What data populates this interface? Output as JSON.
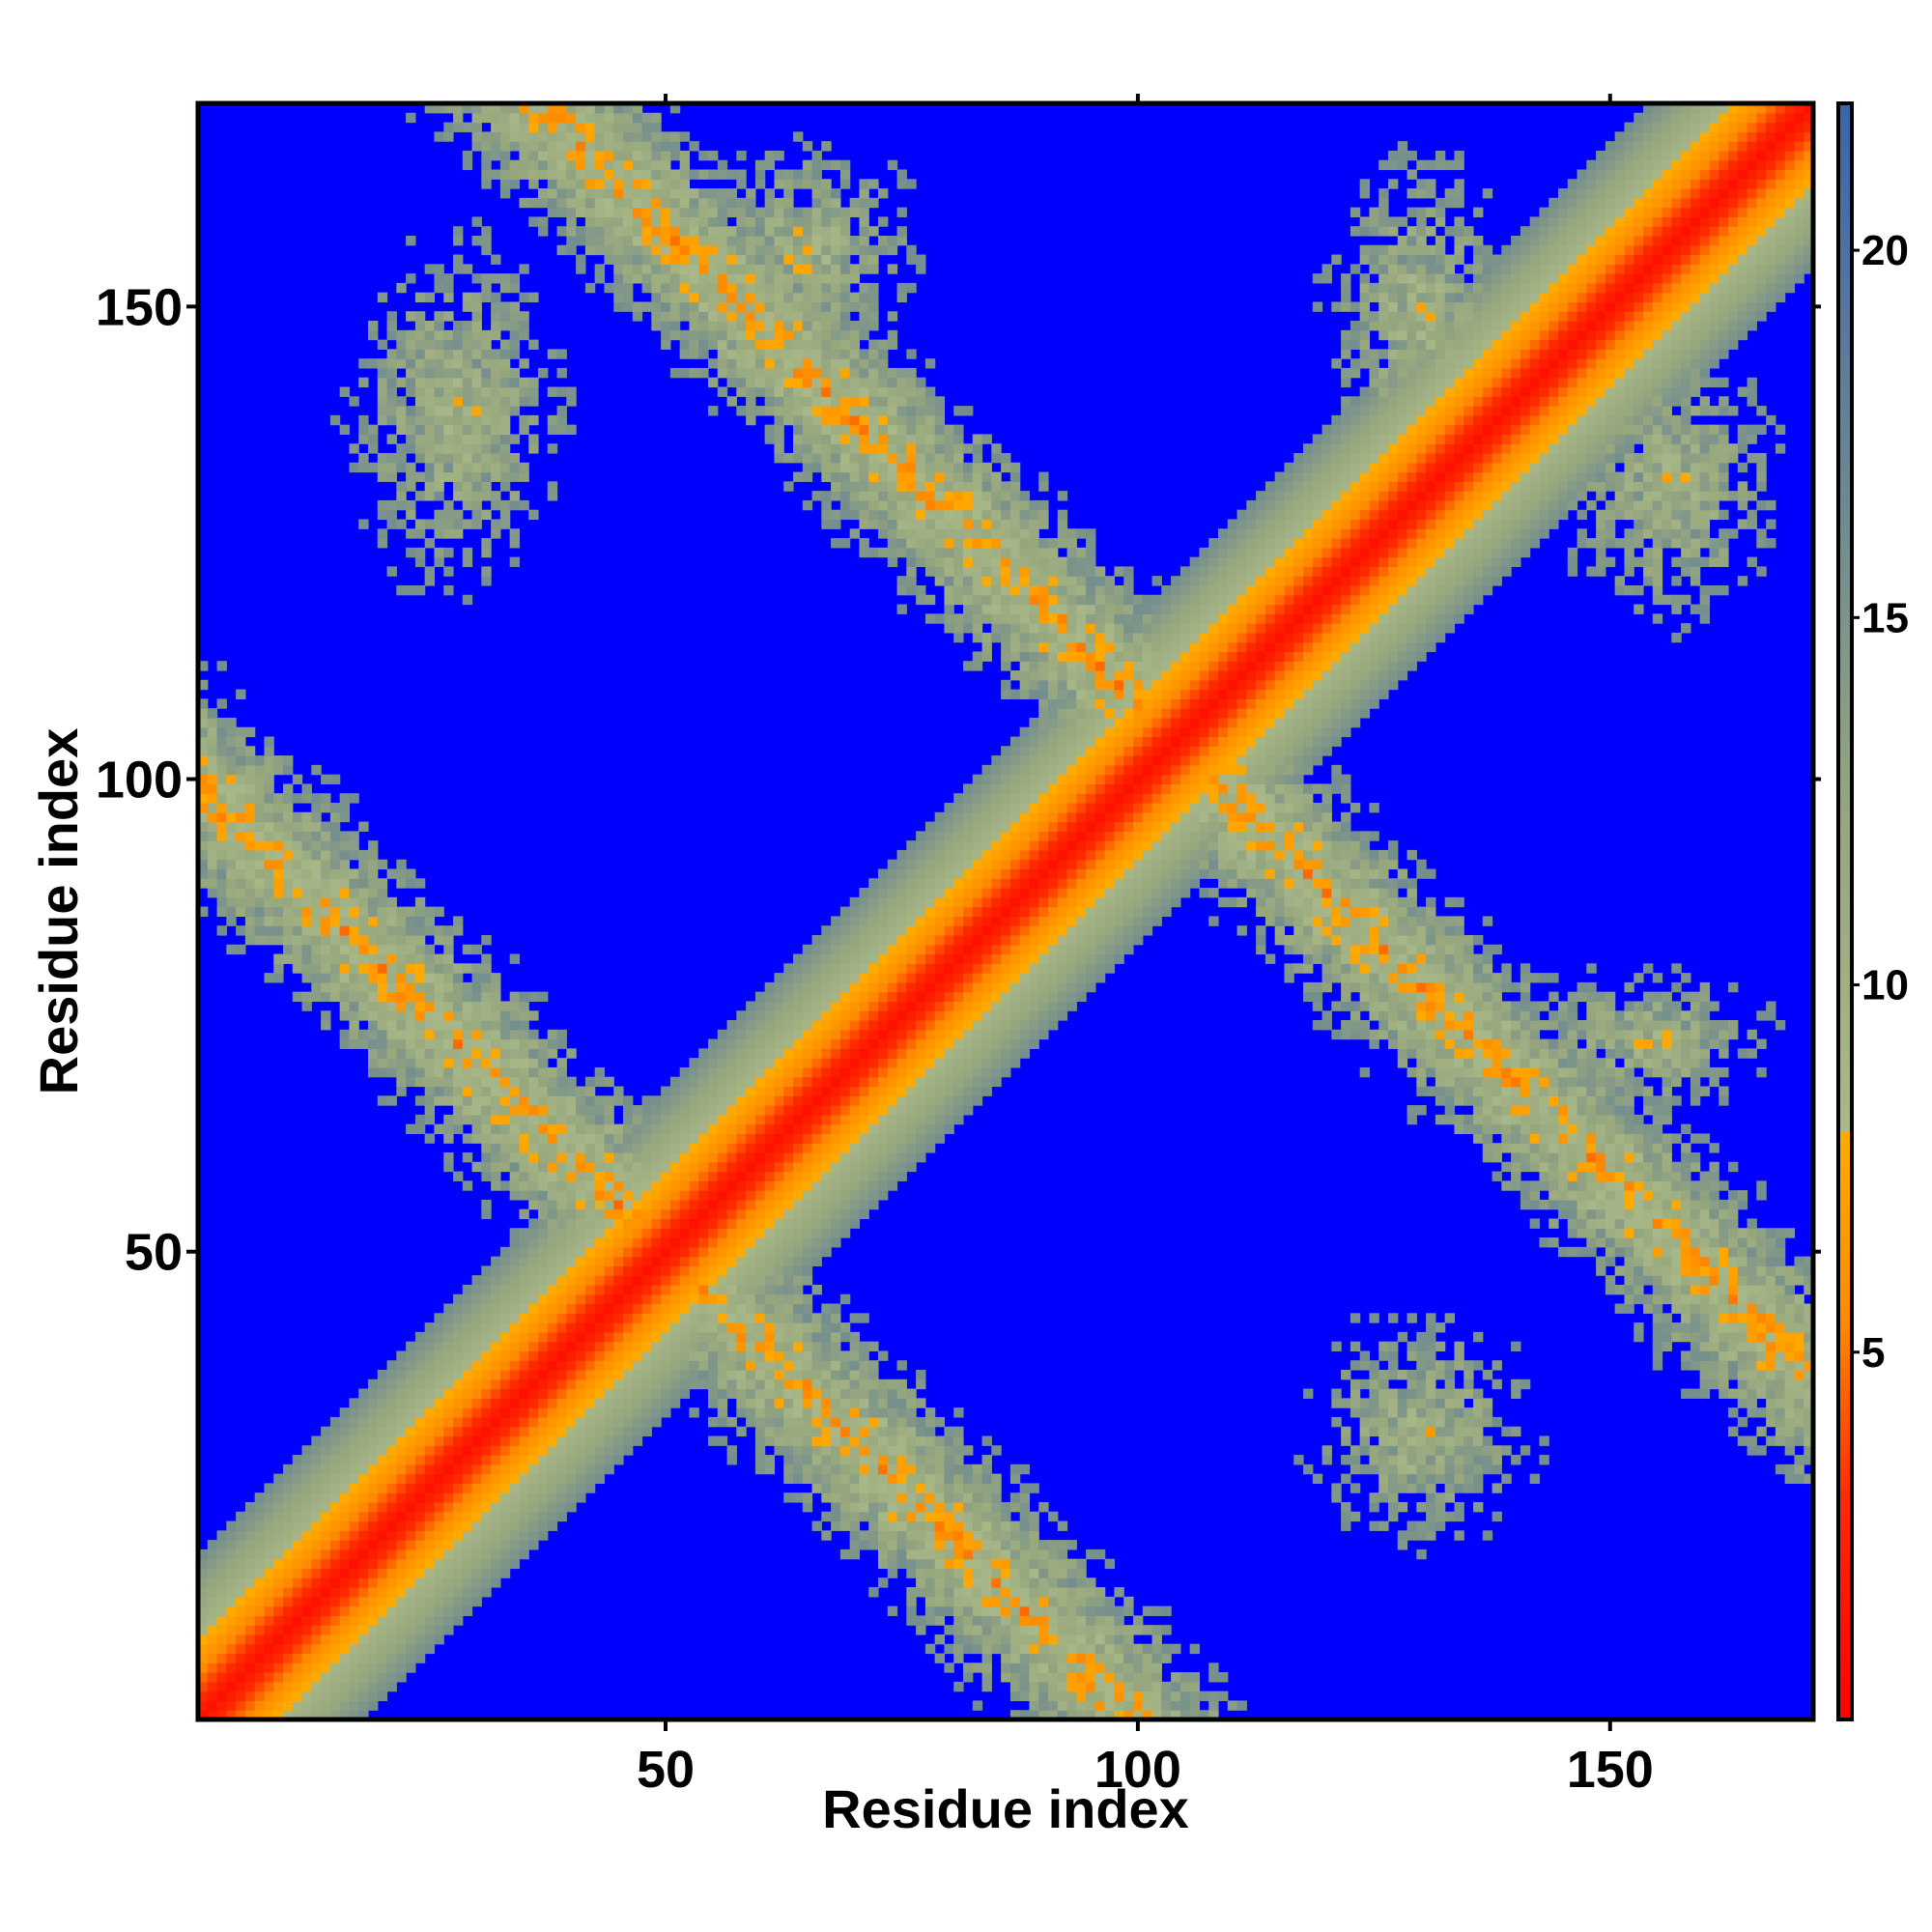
{
  "chart_data": {
    "type": "heatmap",
    "title": "",
    "xlabel": "Residue index",
    "ylabel": "Residue index",
    "xlim": [
      1,
      171
    ],
    "ylim": [
      1,
      171
    ],
    "x_ticks": [
      50,
      100,
      150
    ],
    "x_tick_labels": [
      "50",
      "100",
      "150"
    ],
    "y_ticks": [
      50,
      100,
      150
    ],
    "y_tick_labels": [
      "50",
      "100",
      "150"
    ],
    "grid": false,
    "matrix_size": 171,
    "value_range": [
      0,
      22
    ],
    "cutoff": 16,
    "colorbar": {
      "ticks": [
        5,
        10,
        15,
        20
      ],
      "tick_labels": [
        "5",
        "10",
        "15",
        "20"
      ],
      "stops": [
        {
          "value": 0,
          "color": "#ff0000"
        },
        {
          "value": 3,
          "color": "#ff2a00"
        },
        {
          "value": 5.5,
          "color": "#ff8c00"
        },
        {
          "value": 8,
          "color": "#ffaa00"
        },
        {
          "value": 8.01,
          "color": "#a8b888"
        },
        {
          "value": 12,
          "color": "#98a87e"
        },
        {
          "value": 22,
          "color": "#3c64a8"
        }
      ],
      "cutoff_color": "#0000ff"
    },
    "contact_bands": [
      {
        "name": "diagonal",
        "kind": "diagonal",
        "from": 1,
        "to": 171
      },
      {
        "name": "antiparallel-strands-1",
        "kind": "anti",
        "sum": 100,
        "i_range": [
          4,
          90
        ]
      },
      {
        "name": "antiparallel-strands-2",
        "kind": "anti",
        "sum": 208,
        "i_range": [
          58,
          142
        ]
      },
      {
        "name": "patch-a",
        "kind": "patch",
        "i_range": [
          13,
          43
        ],
        "j_range": [
          115,
          163
        ]
      },
      {
        "name": "patch-b",
        "kind": "patch",
        "i_range": [
          50,
          80
        ],
        "j_range": [
          141,
          171
        ]
      },
      {
        "name": "patch-c",
        "kind": "patch",
        "i_range": [
          117,
          143
        ],
        "j_range": [
          128,
          171
        ]
      },
      {
        "name": "patch-d",
        "kind": "patch",
        "i_range": [
          142,
          171
        ],
        "j_range": [
          112,
          150
        ]
      },
      {
        "name": "patch-e",
        "kind": "patch",
        "i_range": [
          137,
          171
        ],
        "j_range": [
          63,
          82
        ]
      },
      {
        "name": "patch-f",
        "kind": "patch",
        "i_range": [
          115,
          145
        ],
        "j_range": [
          15,
          47
        ]
      }
    ]
  }
}
